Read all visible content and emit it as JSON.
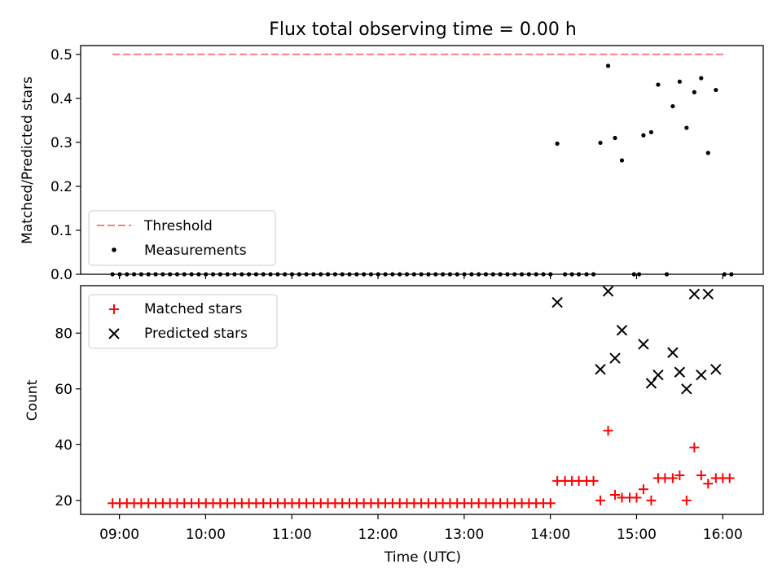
{
  "figure": {
    "title": "Flux total observing time = 0.00 h",
    "xlabel": "Time (UTC)",
    "xticks": [
      "09:00",
      "10:00",
      "11:00",
      "12:00",
      "13:00",
      "14:00",
      "15:00",
      "16:00"
    ]
  },
  "chart_data": [
    {
      "type": "scatter",
      "panel": "top",
      "ylabel": "Matched/Predicted stars",
      "ylim": [
        0,
        0.52
      ],
      "yticks": [
        "0.0",
        "0.1",
        "0.2",
        "0.3",
        "0.4",
        "0.5"
      ],
      "xlim_hours": [
        8.55,
        16.47
      ],
      "legend_position": "lower-left",
      "threshold": {
        "name": "Threshold",
        "value": 0.5,
        "x_range": [
          8.92,
          16.05
        ],
        "color": "#ff7b7b",
        "style": "dashed"
      },
      "measurements": {
        "name": "Measurements",
        "color": "#000000",
        "zero_points": {
          "x_start": 8.92,
          "x_end": 14.02,
          "step": 0.0833,
          "value": 0.0,
          "extra_x": [
            14.17,
            14.25,
            14.33,
            14.42,
            14.5,
            14.97,
            15.03,
            15.35,
            16.02,
            16.1
          ]
        },
        "points": [
          {
            "x": 14.08,
            "y": 0.297
          },
          {
            "x": 14.58,
            "y": 0.299
          },
          {
            "x": 14.67,
            "y": 0.474
          },
          {
            "x": 14.75,
            "y": 0.31
          },
          {
            "x": 14.83,
            "y": 0.259
          },
          {
            "x": 15.08,
            "y": 0.316
          },
          {
            "x": 15.17,
            "y": 0.323
          },
          {
            "x": 15.25,
            "y": 0.431
          },
          {
            "x": 15.42,
            "y": 0.382
          },
          {
            "x": 15.5,
            "y": 0.438
          },
          {
            "x": 15.58,
            "y": 0.333
          },
          {
            "x": 15.67,
            "y": 0.414
          },
          {
            "x": 15.75,
            "y": 0.446
          },
          {
            "x": 15.83,
            "y": 0.276
          },
          {
            "x": 15.92,
            "y": 0.419
          }
        ]
      }
    },
    {
      "type": "scatter",
      "panel": "bottom",
      "ylabel": "Count",
      "ylim": [
        15,
        97
      ],
      "yticks": [
        "20",
        "40",
        "60",
        "80"
      ],
      "xlim_hours": [
        8.55,
        16.47
      ],
      "legend_position": "upper-left",
      "series": [
        {
          "name": "Matched stars",
          "marker": "plus",
          "color": "#ff0000",
          "baseline": {
            "x_start": 8.92,
            "x_end": 14.02,
            "step": 0.0833,
            "value": 19
          },
          "points": [
            {
              "x": 14.08,
              "y": 27
            },
            {
              "x": 14.17,
              "y": 27
            },
            {
              "x": 14.25,
              "y": 27
            },
            {
              "x": 14.33,
              "y": 27
            },
            {
              "x": 14.42,
              "y": 27
            },
            {
              "x": 14.5,
              "y": 27
            },
            {
              "x": 14.58,
              "y": 20
            },
            {
              "x": 14.67,
              "y": 45
            },
            {
              "x": 14.75,
              "y": 22
            },
            {
              "x": 14.83,
              "y": 21
            },
            {
              "x": 14.92,
              "y": 21
            },
            {
              "x": 15.0,
              "y": 21
            },
            {
              "x": 15.08,
              "y": 24
            },
            {
              "x": 15.17,
              "y": 20
            },
            {
              "x": 15.25,
              "y": 28
            },
            {
              "x": 15.33,
              "y": 28
            },
            {
              "x": 15.42,
              "y": 28
            },
            {
              "x": 15.5,
              "y": 29
            },
            {
              "x": 15.58,
              "y": 20
            },
            {
              "x": 15.67,
              "y": 39
            },
            {
              "x": 15.75,
              "y": 29
            },
            {
              "x": 15.83,
              "y": 26
            },
            {
              "x": 15.92,
              "y": 28
            },
            {
              "x": 16.0,
              "y": 28
            },
            {
              "x": 16.08,
              "y": 28
            }
          ]
        },
        {
          "name": "Predicted stars",
          "marker": "x",
          "color": "#000000",
          "points": [
            {
              "x": 14.08,
              "y": 91
            },
            {
              "x": 14.58,
              "y": 67
            },
            {
              "x": 14.67,
              "y": 95
            },
            {
              "x": 14.75,
              "y": 71
            },
            {
              "x": 14.83,
              "y": 81
            },
            {
              "x": 15.08,
              "y": 76
            },
            {
              "x": 15.17,
              "y": 62
            },
            {
              "x": 15.25,
              "y": 65
            },
            {
              "x": 15.42,
              "y": 73
            },
            {
              "x": 15.5,
              "y": 66
            },
            {
              "x": 15.58,
              "y": 60
            },
            {
              "x": 15.67,
              "y": 94
            },
            {
              "x": 15.75,
              "y": 65
            },
            {
              "x": 15.83,
              "y": 94
            },
            {
              "x": 15.92,
              "y": 67
            }
          ]
        }
      ]
    }
  ]
}
